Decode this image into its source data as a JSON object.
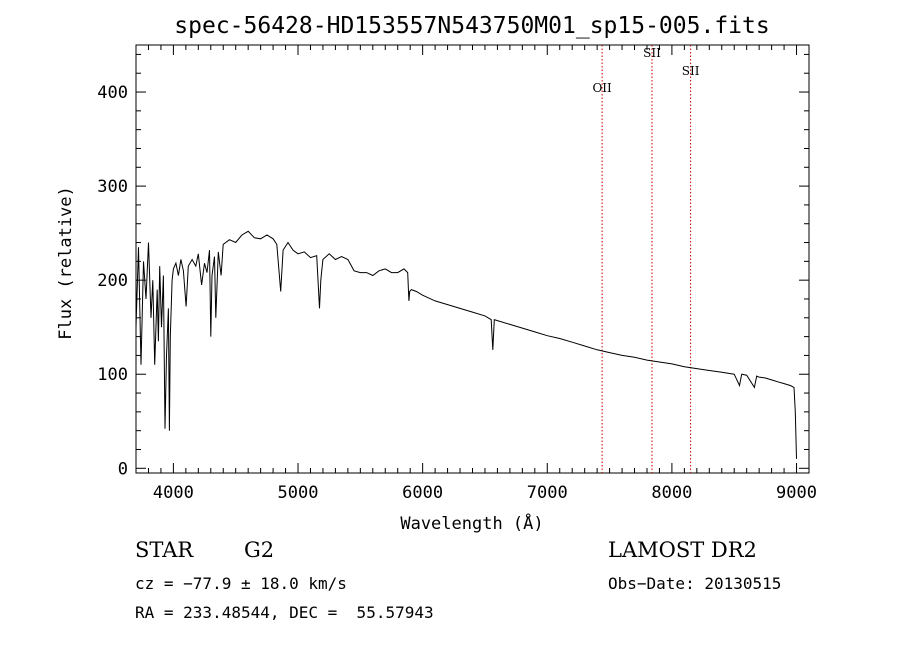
{
  "chart_data": {
    "type": "line",
    "title": "spec-56428-HD153557N543750M01_sp15-005.fits",
    "xlabel": "Wavelength (Å)",
    "ylabel": "Flux (relative)",
    "xlim": [
      3700,
      9100
    ],
    "ylim": [
      -5,
      450
    ],
    "xticks": [
      4000,
      5000,
      6000,
      7000,
      8000,
      9000
    ],
    "yticks": [
      0,
      100,
      200,
      300,
      400
    ],
    "grid": false,
    "line_color": "#000000",
    "marker_color": "#cc0000",
    "series": [
      {
        "x": [
          3700,
          3720,
          3740,
          3760,
          3780,
          3800,
          3820,
          3835,
          3850,
          3870,
          3880,
          3890,
          3905,
          3920,
          3933,
          3945,
          3960,
          3968,
          3975,
          3990,
          4000,
          4020,
          4040,
          4060,
          4080,
          4102,
          4120,
          4150,
          4180,
          4200,
          4226,
          4250,
          4270,
          4290,
          4300,
          4310,
          4330,
          4340,
          4360,
          4383,
          4400,
          4450,
          4500,
          4550,
          4600,
          4650,
          4700,
          4750,
          4800,
          4830,
          4861,
          4880,
          4920,
          4960,
          5000,
          5050,
          5100,
          5150,
          5172,
          5183,
          5200,
          5250,
          5300,
          5350,
          5400,
          5450,
          5500,
          5550,
          5600,
          5650,
          5700,
          5750,
          5800,
          5850,
          5880,
          5890,
          5896,
          5910,
          5950,
          6000,
          6100,
          6200,
          6300,
          6400,
          6500,
          6550,
          6563,
          6575,
          6600,
          6700,
          6800,
          6900,
          7000,
          7100,
          7200,
          7300,
          7400,
          7500,
          7600,
          7700,
          7800,
          7900,
          8000,
          8100,
          8200,
          8300,
          8400,
          8500,
          8542,
          8560,
          8600,
          8662,
          8680,
          8700,
          8750,
          8800,
          8850,
          8900,
          8950,
          8980,
          8990,
          9000
        ],
        "y": [
          150,
          235,
          110,
          220,
          180,
          240,
          160,
          200,
          110,
          190,
          135,
          215,
          150,
          205,
          42,
          120,
          170,
          40,
          140,
          200,
          212,
          218,
          205,
          222,
          210,
          172,
          215,
          222,
          215,
          228,
          195,
          218,
          208,
          232,
          140,
          205,
          225,
          160,
          230,
          205,
          238,
          243,
          240,
          248,
          252,
          245,
          244,
          248,
          244,
          238,
          188,
          232,
          240,
          232,
          228,
          230,
          224,
          226,
          170,
          200,
          222,
          228,
          222,
          225,
          222,
          210,
          208,
          208,
          205,
          210,
          212,
          208,
          208,
          212,
          208,
          178,
          188,
          190,
          188,
          184,
          178,
          174,
          170,
          166,
          162,
          158,
          126,
          158,
          157,
          153,
          149,
          145,
          141,
          138,
          134,
          130,
          126,
          123,
          120,
          118,
          115,
          113,
          111,
          108,
          106,
          104,
          102,
          100,
          88,
          100,
          99,
          86,
          98,
          97,
          96,
          94,
          92,
          90,
          88,
          86,
          60,
          10
        ]
      }
    ],
    "line_markers": [
      {
        "label": "OII",
        "x": 7440,
        "y": 400
      },
      {
        "label": "SII",
        "x": 7840,
        "y": 437
      },
      {
        "label": "SII",
        "x": 8150,
        "y": 418
      }
    ]
  },
  "info": {
    "object_class": "STAR",
    "subclass": "G2",
    "survey": "LAMOST DR2",
    "redshift": "cz = −77.9 ± 18.0 km/s",
    "obs_date": "Obs−Date: 20130515",
    "coords": "RA = 233.48544, DEC =  55.57943"
  }
}
